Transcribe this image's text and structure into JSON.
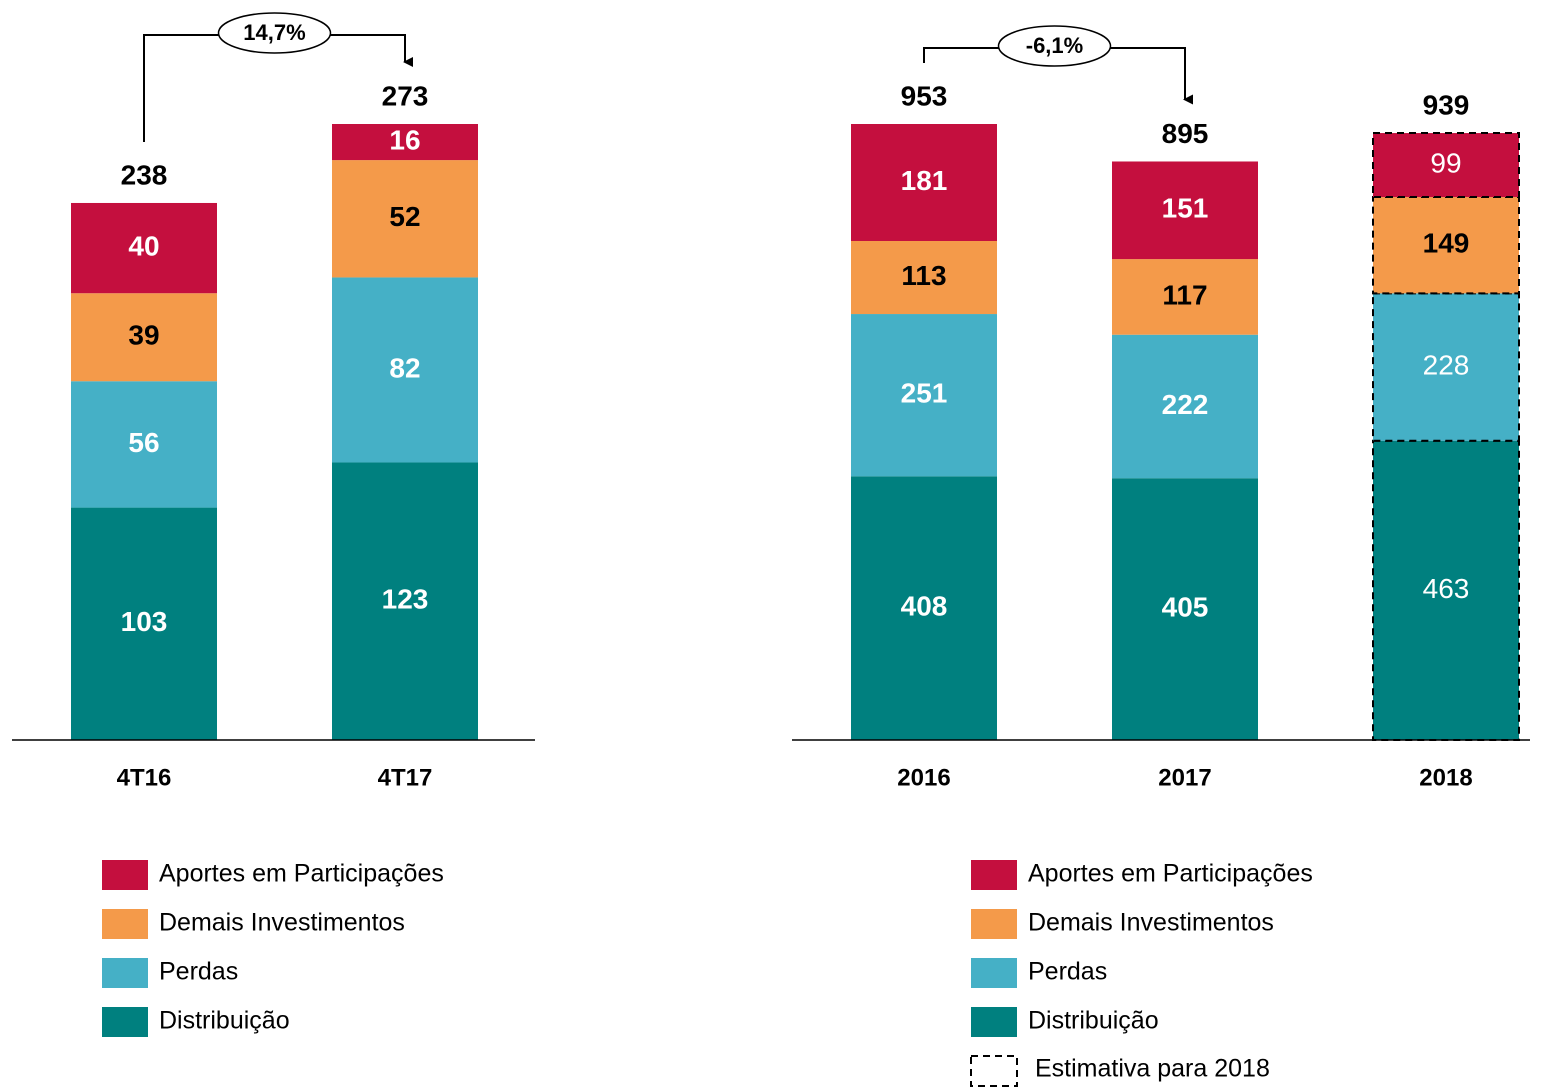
{
  "chart_data": [
    {
      "type": "stacked_bar",
      "categories": [
        "4T16",
        "4T17"
      ],
      "series": [
        {
          "name": "Distribuição",
          "color": "#00807f",
          "values": [
            103,
            123
          ]
        },
        {
          "name": "Perdas",
          "color": "#45b0c6",
          "values": [
            56,
            82
          ]
        },
        {
          "name": "Demais Investimentos",
          "color": "#f49a4a",
          "values": [
            39,
            52
          ]
        },
        {
          "name": "Aportes em Participações",
          "color": "#c40f3e",
          "values": [
            40,
            16
          ]
        }
      ],
      "totals": [
        238,
        273
      ],
      "annotation": "14,7%"
    },
    {
      "type": "stacked_bar",
      "categories": [
        "2016",
        "2017",
        "2018"
      ],
      "series": [
        {
          "name": "Distribuição",
          "color": "#00807f",
          "values": [
            408,
            405,
            463
          ]
        },
        {
          "name": "Perdas",
          "color": "#45b0c6",
          "values": [
            251,
            222,
            228
          ]
        },
        {
          "name": "Demais Investimentos",
          "color": "#f49a4a",
          "values": [
            113,
            117,
            149
          ]
        },
        {
          "name": "Aportes em Participações",
          "color": "#c40f3e",
          "values": [
            181,
            151,
            99
          ]
        }
      ],
      "totals": [
        953,
        895,
        939
      ],
      "annotation": "-6,1%",
      "estimate_category": "2018",
      "estimate_label": "Estimativa para 2018"
    }
  ]
}
